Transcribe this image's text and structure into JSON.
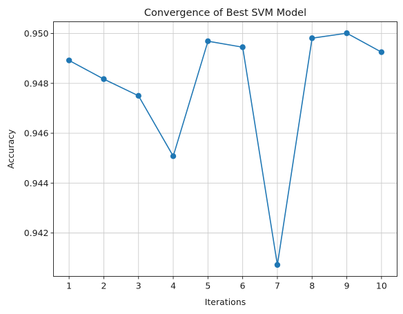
{
  "chart_data": {
    "type": "line",
    "title": "Convergence of Best SVM Model",
    "xlabel": "Iterations",
    "ylabel": "Accuracy",
    "x": [
      1,
      2,
      3,
      4,
      5,
      6,
      7,
      8,
      9,
      10
    ],
    "series": [
      {
        "values": [
          0.94892,
          0.94817,
          0.9475,
          0.94508,
          0.94969,
          0.94945,
          0.94072,
          0.94981,
          0.95001,
          0.94925
        ],
        "color": "#1f77b4",
        "marker": "circle"
      }
    ],
    "xticks": [
      "1",
      "2",
      "3",
      "4",
      "5",
      "6",
      "7",
      "8",
      "9",
      "10"
    ],
    "yticks": [
      "0.942",
      "0.944",
      "0.946",
      "0.948",
      "0.950"
    ],
    "ytick_values": [
      0.942,
      0.944,
      0.946,
      0.948,
      0.95
    ],
    "xlim": [
      0.55,
      10.45
    ],
    "ylim": [
      0.94026,
      0.95047
    ],
    "grid": true
  }
}
